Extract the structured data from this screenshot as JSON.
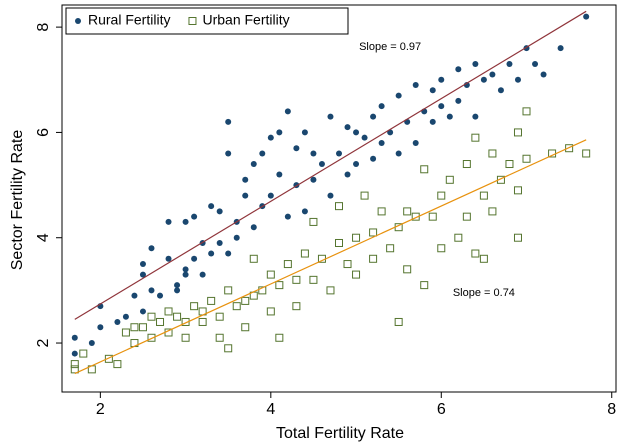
{
  "chart_data": {
    "type": "scatter",
    "xlabel": "Total Fertility Rate",
    "ylabel": "Sector Fertility Rate",
    "xlim": [
      1.55,
      8.05
    ],
    "ylim": [
      1.07,
      8.42
    ],
    "xticks": [
      2,
      4,
      6,
      8
    ],
    "yticks": [
      2,
      4,
      6,
      8
    ],
    "legend": "top-left",
    "series": [
      {
        "name": "Rural Fertility",
        "color": "#1a476f",
        "marker": "circle",
        "x": [
          1.7,
          1.7,
          1.9,
          2.0,
          2.0,
          2.2,
          2.3,
          2.4,
          2.5,
          2.5,
          2.5,
          2.6,
          2.6,
          2.7,
          2.8,
          2.8,
          2.9,
          2.9,
          3.0,
          3.0,
          3.0,
          3.1,
          3.1,
          3.2,
          3.2,
          3.3,
          3.3,
          3.4,
          3.4,
          3.5,
          3.5,
          3.5,
          3.6,
          3.6,
          3.7,
          3.7,
          3.8,
          3.8,
          3.9,
          3.9,
          4.0,
          4.0,
          4.1,
          4.1,
          4.2,
          4.2,
          4.3,
          4.3,
          4.4,
          4.4,
          4.5,
          4.5,
          4.6,
          4.7,
          4.7,
          4.8,
          4.9,
          4.9,
          5.0,
          5.0,
          5.1,
          5.2,
          5.2,
          5.3,
          5.3,
          5.4,
          5.5,
          5.5,
          5.6,
          5.7,
          5.7,
          5.8,
          5.9,
          5.9,
          6.0,
          6.0,
          6.1,
          6.2,
          6.2,
          6.3,
          6.4,
          6.4,
          6.5,
          6.6,
          6.7,
          6.8,
          6.9,
          7.0,
          7.1,
          7.2,
          7.4,
          7.7
        ],
        "values": [
          2.1,
          1.8,
          2.0,
          2.3,
          2.7,
          2.4,
          2.5,
          2.9,
          3.3,
          3.5,
          2.6,
          3.0,
          3.8,
          2.9,
          3.6,
          4.3,
          3.1,
          3.0,
          3.3,
          3.4,
          4.3,
          3.6,
          4.4,
          3.3,
          3.9,
          3.7,
          4.6,
          4.5,
          3.9,
          3.7,
          5.6,
          6.2,
          4.3,
          4.0,
          4.8,
          5.1,
          5.4,
          4.2,
          5.6,
          4.6,
          4.8,
          5.9,
          6.0,
          5.2,
          6.4,
          4.4,
          5.0,
          5.7,
          4.5,
          6.0,
          5.6,
          5.1,
          5.4,
          4.8,
          6.3,
          5.6,
          5.2,
          6.1,
          5.4,
          6.0,
          5.9,
          5.5,
          6.3,
          6.5,
          5.8,
          6.0,
          6.7,
          5.6,
          6.2,
          6.9,
          5.8,
          6.4,
          6.8,
          6.2,
          6.5,
          7.0,
          6.3,
          7.2,
          6.6,
          6.9,
          7.3,
          6.3,
          7.0,
          7.1,
          6.8,
          7.3,
          7.0,
          7.6,
          7.3,
          7.1,
          7.6,
          8.2
        ]
      },
      {
        "name": "Urban Fertility",
        "color": "#55752f",
        "marker": "square",
        "x": [
          1.7,
          1.7,
          1.8,
          1.9,
          2.1,
          2.2,
          2.3,
          2.4,
          2.4,
          2.5,
          2.6,
          2.6,
          2.7,
          2.8,
          2.8,
          2.9,
          3.0,
          3.0,
          3.1,
          3.2,
          3.2,
          3.3,
          3.4,
          3.4,
          3.5,
          3.5,
          3.6,
          3.7,
          3.7,
          3.8,
          3.8,
          3.9,
          4.0,
          4.0,
          4.1,
          4.1,
          4.2,
          4.3,
          4.3,
          4.4,
          4.5,
          4.5,
          4.6,
          4.7,
          4.8,
          4.8,
          4.9,
          5.0,
          5.0,
          5.1,
          5.2,
          5.2,
          5.3,
          5.4,
          5.5,
          5.5,
          5.6,
          5.6,
          5.7,
          5.8,
          5.8,
          5.9,
          6.0,
          6.0,
          6.1,
          6.2,
          6.3,
          6.3,
          6.4,
          6.4,
          6.5,
          6.6,
          6.6,
          6.7,
          6.8,
          6.9,
          6.9,
          7.0,
          7.0,
          7.3,
          7.5,
          7.7,
          6.9,
          6.5
        ],
        "values": [
          1.5,
          1.6,
          1.8,
          1.5,
          1.7,
          1.6,
          2.2,
          2.3,
          2.0,
          2.3,
          2.5,
          2.1,
          2.4,
          2.2,
          2.6,
          2.5,
          2.4,
          2.1,
          2.7,
          2.6,
          2.4,
          2.8,
          2.5,
          2.1,
          3.0,
          1.9,
          2.7,
          2.8,
          2.3,
          3.6,
          2.9,
          3.0,
          3.3,
          2.6,
          2.1,
          3.1,
          3.5,
          3.2,
          2.7,
          3.7,
          3.2,
          4.3,
          3.6,
          3.0,
          3.9,
          4.6,
          3.5,
          4.0,
          3.3,
          4.8,
          4.1,
          3.6,
          4.5,
          3.8,
          4.2,
          2.4,
          4.5,
          3.4,
          4.4,
          3.1,
          5.3,
          4.4,
          4.8,
          3.8,
          5.1,
          4.0,
          5.4,
          4.4,
          5.9,
          3.7,
          4.8,
          5.6,
          4.5,
          5.1,
          5.4,
          4.9,
          6.0,
          6.4,
          5.5,
          5.6,
          5.7,
          5.6,
          4.0,
          3.6
        ]
      }
    ],
    "fit_lines": [
      {
        "color": "#90353b",
        "x": [
          1.7,
          7.7
        ],
        "values": [
          2.45,
          8.3
        ]
      },
      {
        "color": "#e8920e",
        "x": [
          1.7,
          7.7
        ],
        "values": [
          1.42,
          5.86
        ]
      }
    ],
    "annotations": [
      {
        "text": "Slope = 0.97",
        "x": 5.4,
        "y": 7.62
      },
      {
        "text": "Slope = 0.74",
        "x": 6.5,
        "y": 2.95
      }
    ]
  }
}
